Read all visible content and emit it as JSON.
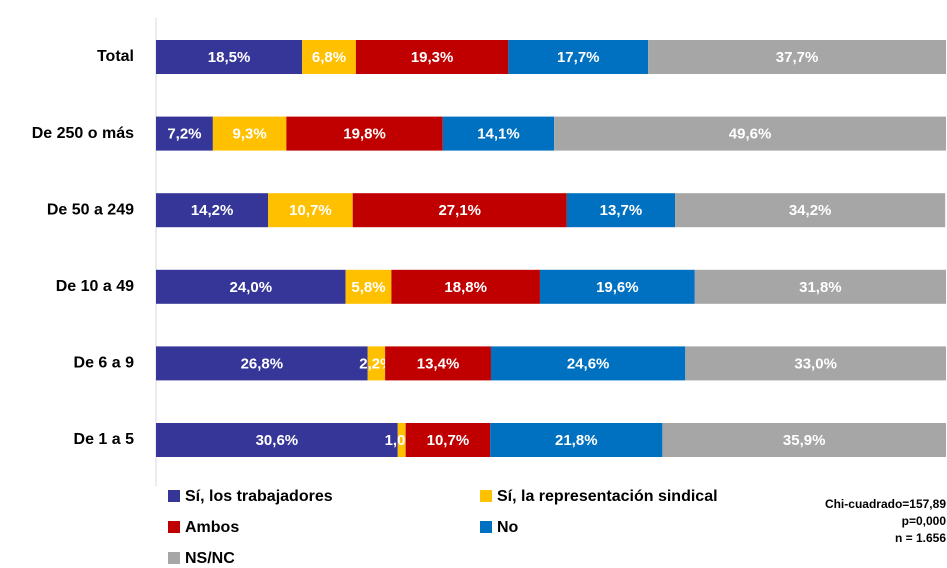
{
  "chart_data": {
    "type": "stacked-bar-horizontal",
    "categories": [
      "Total",
      "De 250 o más",
      "De 50 a 249",
      "De 10 a 49",
      "De 6 a 9",
      "De 1 a 5"
    ],
    "xlim": [
      0,
      100
    ],
    "series": [
      {
        "name": "Sí, los trabajadores",
        "color": "#363699",
        "values": [
          18.5,
          7.2,
          14.2,
          24.0,
          26.8,
          30.6
        ],
        "value_labels": [
          "18,5%",
          "7,2%",
          "14,2%",
          "24,0%",
          "26,8%",
          "30,6%"
        ]
      },
      {
        "name": "Sí, la representación sindical",
        "color": "#ffc000",
        "values": [
          6.8,
          9.3,
          10.7,
          5.8,
          2.2,
          1.0
        ],
        "value_labels": [
          "6,8%",
          "9,3%",
          "10,7%",
          "5,8%",
          "2,2%",
          "1,0%"
        ]
      },
      {
        "name": "Ambos",
        "color": "#c00000",
        "values": [
          19.3,
          19.8,
          27.1,
          18.8,
          13.4,
          10.7
        ],
        "value_labels": [
          "19,3%",
          "19,8%",
          "27,1%",
          "18,8%",
          "13,4%",
          "10,7%"
        ]
      },
      {
        "name": "No",
        "color": "#0070c0",
        "values": [
          17.7,
          14.1,
          13.7,
          19.6,
          24.6,
          21.8
        ],
        "value_labels": [
          "17,7%",
          "14,1%",
          "13,7%",
          "19,6%",
          "24,6%",
          "21,8%"
        ]
      },
      {
        "name": "NS/NC",
        "color": "#a6a6a6",
        "values": [
          37.7,
          49.6,
          34.2,
          31.8,
          33.0,
          35.9
        ],
        "value_labels": [
          "37,7%",
          "49,6%",
          "34,2%",
          "31,8%",
          "33,0%",
          "35,9%"
        ]
      }
    ],
    "annotation": [
      "Chi-cuadrado=157,89",
      "p=0,000",
      "n = 1.656"
    ]
  }
}
